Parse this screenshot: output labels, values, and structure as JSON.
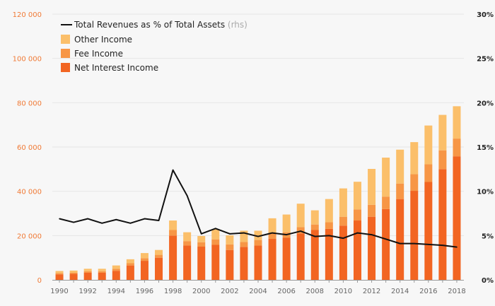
{
  "chart_data": {
    "type": "bar",
    "stacked": true,
    "title": "",
    "xlabel": "",
    "ylabel": "",
    "ylim": [
      0,
      120000
    ],
    "y2lim": [
      0,
      30
    ],
    "grid": true,
    "legend_position": "top-left",
    "categories": [
      1990,
      1991,
      1992,
      1993,
      1994,
      1995,
      1996,
      1997,
      1998,
      1999,
      2000,
      2001,
      2002,
      2003,
      2004,
      2005,
      2006,
      2007,
      2008,
      2009,
      2010,
      2011,
      2012,
      2013,
      2014,
      2015,
      2016,
      2017,
      2018
    ],
    "x_tick_labels": [
      "1990",
      "1992",
      "1994",
      "1996",
      "1998",
      "2000",
      "2002",
      "2004",
      "2006",
      "2008",
      "2010",
      "2012",
      "2014",
      "2016",
      "2018"
    ],
    "y_tick_labels": [
      "0",
      "20 000",
      "40 000",
      "60 000",
      "80 000",
      "100 000",
      "120 000"
    ],
    "y2_tick_labels": [
      "0%",
      "5%",
      "10%",
      "15%",
      "20%",
      "25%",
      "30%"
    ],
    "series": [
      {
        "name": "Net Interest Income",
        "color": "#f26522",
        "values": [
          2500,
          2700,
          3200,
          3200,
          4100,
          6500,
          8600,
          10000,
          20000,
          15500,
          15000,
          15800,
          13500,
          14900,
          15500,
          18500,
          19000,
          21000,
          22500,
          23000,
          24500,
          26800,
          28500,
          32000,
          36500,
          40200,
          44200,
          50000,
          55800
        ]
      },
      {
        "name": "Fee Income",
        "color": "#f79646",
        "values": [
          500,
          500,
          700,
          700,
          900,
          1000,
          1200,
          1300,
          2500,
          2000,
          2000,
          2500,
          2500,
          2200,
          2500,
          2500,
          2500,
          2800,
          2500,
          3000,
          4000,
          5000,
          5400,
          5600,
          7000,
          7500,
          8000,
          8500,
          8000
        ]
      },
      {
        "name": "Other Income",
        "color": "#fbbf6a",
        "values": [
          1000,
          1000,
          1100,
          1100,
          1500,
          1800,
          2300,
          2200,
          4300,
          4000,
          2800,
          4500,
          4100,
          5100,
          4200,
          6800,
          8000,
          10600,
          6400,
          10500,
          12800,
          12500,
          16200,
          17600,
          15300,
          14500,
          17500,
          16000,
          14600
        ]
      }
    ],
    "line_series": {
      "name": "Total Revenues as % of Total Assets",
      "suffix": "(rhs)",
      "axis": "right",
      "unit": "%",
      "color": "#111111",
      "values": [
        6.9,
        6.5,
        6.9,
        6.4,
        6.8,
        6.4,
        6.9,
        6.7,
        12.4,
        9.5,
        5.2,
        5.8,
        5.2,
        5.3,
        4.9,
        5.3,
        5.1,
        5.5,
        4.9,
        5.0,
        4.7,
        5.3,
        5.1,
        4.6,
        4.1,
        4.1,
        4.0,
        3.9,
        3.7
      ]
    }
  }
}
